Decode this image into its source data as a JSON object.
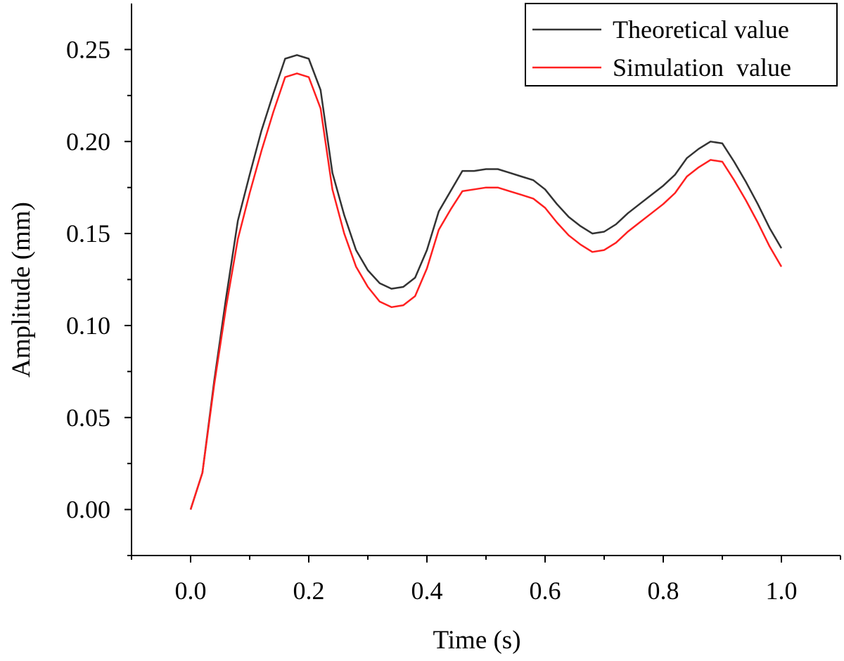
{
  "chart_data": {
    "type": "line",
    "xlabel": "Time (s)",
    "ylabel": "Amplitude (mm)",
    "xlim": [
      -0.1,
      1.1
    ],
    "ylim": [
      -0.025,
      0.275
    ],
    "x_ticks": [
      0.0,
      0.2,
      0.4,
      0.6,
      0.8,
      1.0
    ],
    "x_tick_labels": [
      "0.0",
      "0.2",
      "0.4",
      "0.6",
      "0.8",
      "1.0"
    ],
    "y_ticks": [
      0.0,
      0.05,
      0.1,
      0.15,
      0.2,
      0.25
    ],
    "y_tick_labels": [
      "0.00",
      "0.05",
      "0.10",
      "0.15",
      "0.20",
      "0.25"
    ],
    "grid": false,
    "legend_position": "top-right",
    "series": [
      {
        "name": "Theoretical value",
        "color": "#333333",
        "x": [
          0.0,
          0.02,
          0.04,
          0.06,
          0.08,
          0.1,
          0.12,
          0.14,
          0.16,
          0.18,
          0.2,
          0.22,
          0.24,
          0.26,
          0.28,
          0.3,
          0.32,
          0.34,
          0.36,
          0.38,
          0.4,
          0.42,
          0.44,
          0.46,
          0.48,
          0.5,
          0.52,
          0.54,
          0.56,
          0.58,
          0.6,
          0.62,
          0.64,
          0.66,
          0.68,
          0.7,
          0.72,
          0.74,
          0.76,
          0.78,
          0.8,
          0.82,
          0.84,
          0.86,
          0.88,
          0.9,
          0.92,
          0.94,
          0.96,
          0.98,
          1.0
        ],
        "values": [
          0.0,
          0.02,
          0.07,
          0.115,
          0.157,
          0.182,
          0.206,
          0.226,
          0.245,
          0.247,
          0.245,
          0.228,
          0.183,
          0.16,
          0.141,
          0.13,
          0.123,
          0.12,
          0.121,
          0.126,
          0.141,
          0.162,
          0.173,
          0.184,
          0.184,
          0.185,
          0.185,
          0.183,
          0.181,
          0.179,
          0.174,
          0.166,
          0.159,
          0.154,
          0.15,
          0.151,
          0.155,
          0.161,
          0.166,
          0.171,
          0.176,
          0.182,
          0.191,
          0.196,
          0.2,
          0.199,
          0.189,
          0.178,
          0.166,
          0.153,
          0.142
        ]
      },
      {
        "name": "Simulation  value",
        "color": "#ff2020",
        "x": [
          0.0,
          0.02,
          0.04,
          0.06,
          0.08,
          0.1,
          0.12,
          0.14,
          0.16,
          0.18,
          0.2,
          0.22,
          0.24,
          0.26,
          0.28,
          0.3,
          0.32,
          0.34,
          0.36,
          0.38,
          0.4,
          0.42,
          0.44,
          0.46,
          0.48,
          0.5,
          0.52,
          0.54,
          0.56,
          0.58,
          0.6,
          0.62,
          0.64,
          0.66,
          0.68,
          0.7,
          0.72,
          0.74,
          0.76,
          0.78,
          0.8,
          0.82,
          0.84,
          0.86,
          0.88,
          0.9,
          0.92,
          0.94,
          0.96,
          0.98,
          1.0
        ],
        "values": [
          0.0,
          0.02,
          0.068,
          0.11,
          0.147,
          0.172,
          0.195,
          0.216,
          0.235,
          0.237,
          0.235,
          0.218,
          0.174,
          0.15,
          0.132,
          0.121,
          0.113,
          0.11,
          0.111,
          0.116,
          0.131,
          0.152,
          0.163,
          0.173,
          0.174,
          0.175,
          0.175,
          0.173,
          0.171,
          0.169,
          0.164,
          0.156,
          0.149,
          0.144,
          0.14,
          0.141,
          0.145,
          0.151,
          0.156,
          0.161,
          0.166,
          0.172,
          0.181,
          0.186,
          0.19,
          0.189,
          0.179,
          0.168,
          0.156,
          0.143,
          0.132
        ]
      }
    ]
  }
}
